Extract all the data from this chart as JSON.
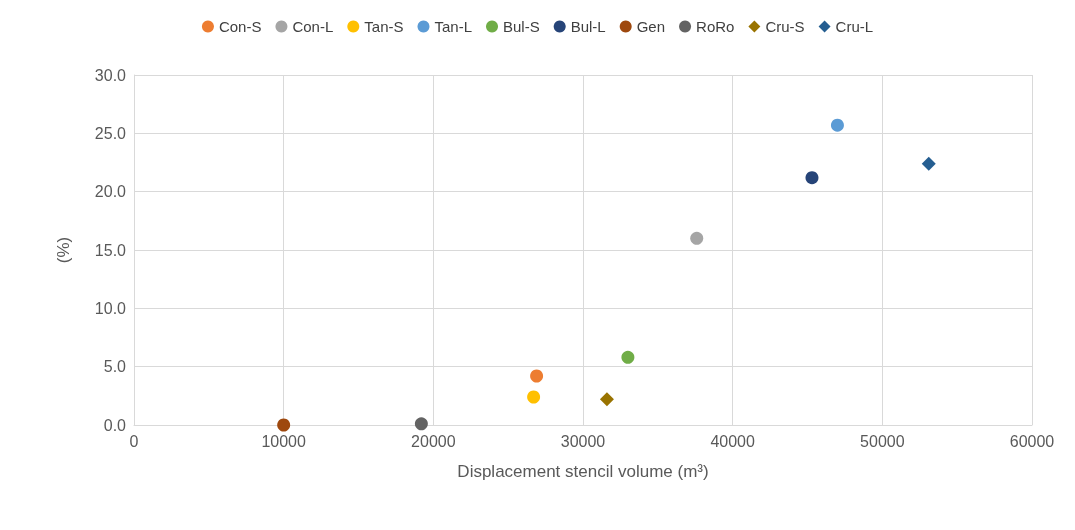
{
  "chart_data": {
    "type": "scatter",
    "xlabel": "Displacement stencil volume (m³)",
    "ylabel": "(%)",
    "legend": "top",
    "grid": true,
    "xlim": [
      0,
      60000
    ],
    "xticks": [
      0,
      10000,
      20000,
      30000,
      40000,
      50000,
      60000
    ],
    "ylim": [
      0,
      30
    ],
    "yticks": [
      {
        "value": 0,
        "label": "0.0"
      },
      {
        "value": 5,
        "label": "5.0"
      },
      {
        "value": 10,
        "label": "10.0"
      },
      {
        "value": 15,
        "label": "15.0"
      },
      {
        "value": 20,
        "label": "20.0"
      },
      {
        "value": 25,
        "label": "25.0"
      },
      {
        "value": 30,
        "label": "30.0"
      }
    ],
    "series": [
      {
        "name": "Con-S",
        "color": "#ed7d31",
        "marker": "circle",
        "x": [
          26900
        ],
        "values": [
          4.2
        ]
      },
      {
        "name": "Con-L",
        "color": "#a5a5a5",
        "marker": "circle",
        "x": [
          37600
        ],
        "values": [
          16.0
        ]
      },
      {
        "name": "Tan-S",
        "color": "#ffc000",
        "marker": "circle",
        "x": [
          26700
        ],
        "values": [
          2.4
        ]
      },
      {
        "name": "Tan-L",
        "color": "#5b9bd5",
        "marker": "circle",
        "x": [
          47000
        ],
        "values": [
          25.7
        ]
      },
      {
        "name": "Bul-S",
        "color": "#70ad47",
        "marker": "circle",
        "x": [
          33000
        ],
        "values": [
          5.8
        ]
      },
      {
        "name": "Bul-L",
        "color": "#264478",
        "marker": "circle",
        "x": [
          45300
        ],
        "values": [
          21.2
        ]
      },
      {
        "name": "Gen",
        "color": "#9e480e",
        "marker": "circle",
        "x": [
          10000
        ],
        "values": [
          0
        ]
      },
      {
        "name": "RoRo",
        "color": "#636363",
        "marker": "circle",
        "x": [
          19200
        ],
        "values": [
          0.1
        ]
      },
      {
        "name": "Cru-S",
        "color": "#997300",
        "marker": "diamond",
        "x": [
          31600
        ],
        "values": [
          2.2
        ]
      },
      {
        "name": "Cru-L",
        "color": "#255e91",
        "marker": "diamond",
        "x": [
          53100
        ],
        "values": [
          22.4
        ]
      }
    ]
  }
}
